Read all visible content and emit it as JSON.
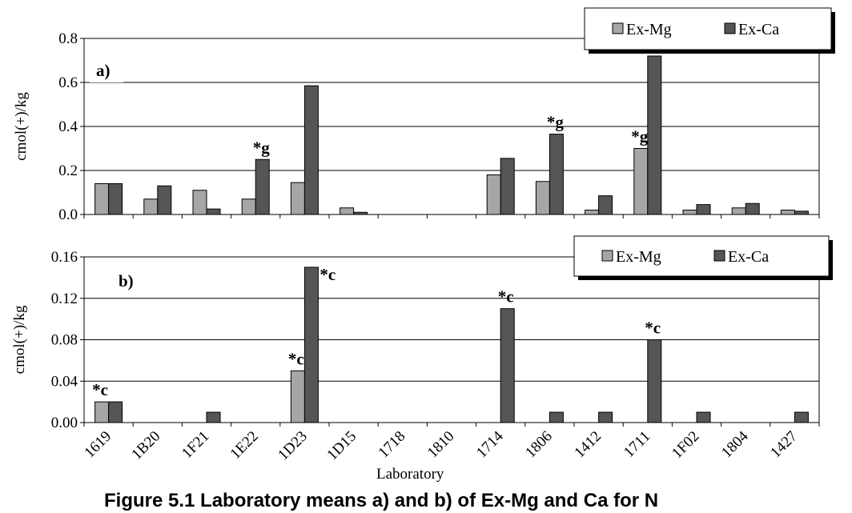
{
  "figure_caption": "Figure 5.1  Laboratory means a) and b) of Ex-Mg and Ca for N",
  "x_axis_title": "Laboratory",
  "colors": {
    "ex_mg": "#a6a6a6",
    "ex_ca": "#555555",
    "grid": "#000000"
  },
  "chart_data": [
    {
      "type": "bar",
      "panel_label": "a)",
      "ylabel": "cmol(+)/kg",
      "ylim": [
        0,
        0.8
      ],
      "yticks": [
        "0.0",
        "0.2",
        "0.4",
        "0.6",
        "0.8"
      ],
      "grid": true,
      "legend_position": "top-right",
      "categories": [
        "1619",
        "1B20",
        "1F21",
        "1E22",
        "1D23",
        "1D15",
        "1718",
        "1810",
        "1714",
        "1806",
        "1412",
        "1711",
        "1F02",
        "1804",
        "1427"
      ],
      "series": [
        {
          "name": "Ex-Mg",
          "values": [
            0.14,
            0.07,
            0.11,
            0.07,
            0.145,
            0.03,
            null,
            null,
            0.18,
            0.15,
            0.02,
            0.3,
            0.02,
            0.03,
            0.02
          ]
        },
        {
          "name": "Ex-Ca",
          "values": [
            0.14,
            0.13,
            0.025,
            0.25,
            0.585,
            0.01,
            null,
            null,
            0.255,
            0.365,
            0.085,
            0.72,
            0.045,
            0.05,
            0.015
          ]
        }
      ],
      "annotations": [
        {
          "text": "*g",
          "category": "1E22",
          "series": "Ex-Ca"
        },
        {
          "text": "*g",
          "category": "1806",
          "series": "Ex-Ca"
        },
        {
          "text": "*g",
          "category": "1711",
          "series": "Ex-Mg"
        }
      ]
    },
    {
      "type": "bar",
      "panel_label": "b)",
      "ylabel": "cmol(+)/kg",
      "ylim": [
        0,
        0.16
      ],
      "yticks": [
        "0.00",
        "0.04",
        "0.08",
        "0.12",
        "0.16"
      ],
      "grid": true,
      "legend_position": "top-right",
      "categories": [
        "1619",
        "1B20",
        "1F21",
        "1E22",
        "1D23",
        "1D15",
        "1718",
        "1810",
        "1714",
        "1806",
        "1412",
        "1711",
        "1F02",
        "1804",
        "1427"
      ],
      "series": [
        {
          "name": "Ex-Mg",
          "values": [
            0.02,
            null,
            null,
            null,
            0.05,
            null,
            null,
            null,
            null,
            null,
            null,
            null,
            null,
            null,
            null
          ]
        },
        {
          "name": "Ex-Ca",
          "values": [
            0.02,
            null,
            0.01,
            null,
            0.15,
            null,
            null,
            null,
            0.11,
            0.01,
            0.01,
            0.08,
            0.01,
            null,
            0.01
          ]
        }
      ],
      "annotations": [
        {
          "text": "*c",
          "category": "1619",
          "series": "Ex-Mg"
        },
        {
          "text": "*c",
          "category": "1D23",
          "series": "Ex-Mg"
        },
        {
          "text": "*c",
          "category": "1D23",
          "series": "Ex-Ca",
          "side": "right"
        },
        {
          "text": "*c",
          "category": "1714",
          "series": "Ex-Ca"
        },
        {
          "text": "*c",
          "category": "1711",
          "series": "Ex-Ca"
        }
      ]
    }
  ]
}
